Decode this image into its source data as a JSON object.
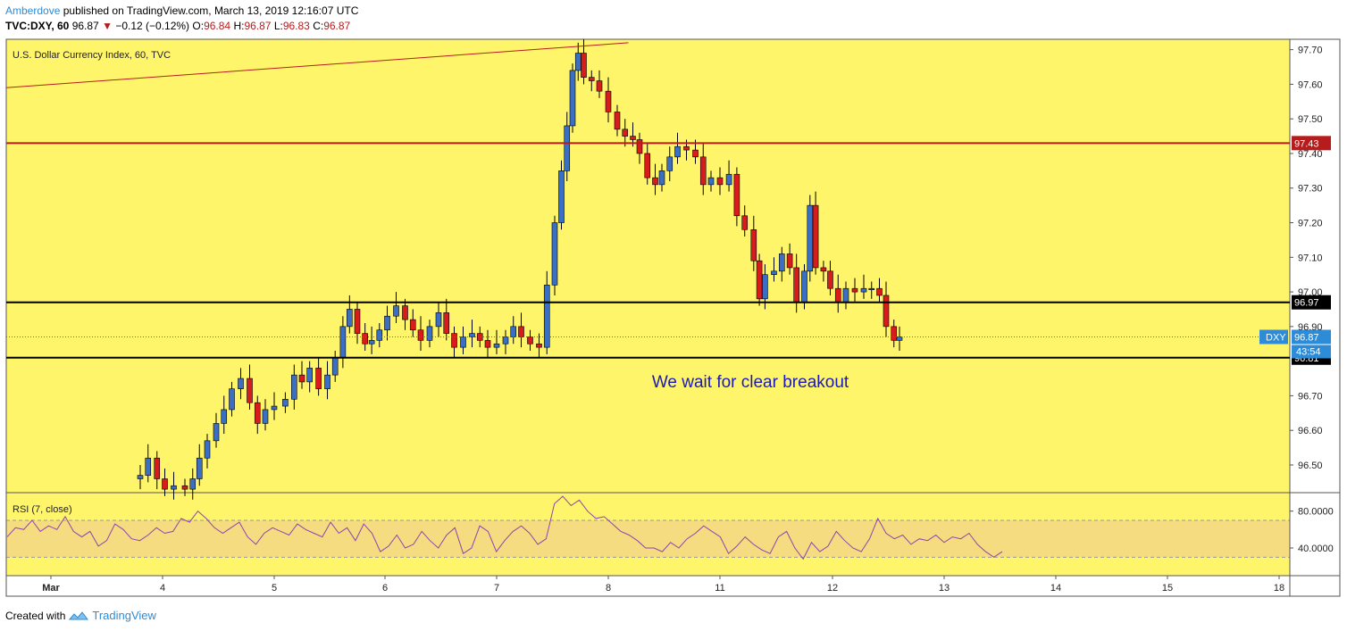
{
  "header": {
    "author": "Amberdove",
    "published": "published on TradingView.com, March 13, 2019 12:16:07 UTC",
    "symbol": "TVC:DXY, 60",
    "last": "96.87",
    "change_arrow": "▼",
    "change": "−0.12 (−0.12%)",
    "o_label": "O:",
    "o_value": "96.84",
    "h_label": "H:",
    "h_value": "96.87",
    "l_label": "L:",
    "l_value": "96.83",
    "c_label": "C:",
    "c_value": "96.87"
  },
  "footer": {
    "created_with": "Created with",
    "brand": "TradingView"
  },
  "colors": {
    "background": "#fff56b",
    "up_candle": "#3b6fc4",
    "down_candle": "#d81b1b",
    "resistance_line": "#b71c1c",
    "support_line": "#000000",
    "rsi_line": "#8e44ad",
    "rsi_band": "#f5dc80",
    "annotation": "#1a1ab8"
  },
  "chart_data": [
    {
      "type": "candlestick",
      "title": "U.S. Dollar Currency Index, 60, TVC",
      "ylim": [
        96.42,
        97.73
      ],
      "yticks": [
        "97.70",
        "97.60",
        "97.50",
        "97.40",
        "97.30",
        "97.20",
        "97.10",
        "97.00",
        "96.90",
        "96.70",
        "96.60",
        "96.50"
      ],
      "xticks": [
        "Mar",
        "4",
        "5",
        "6",
        "7",
        "8",
        "11",
        "12",
        "13",
        "14",
        "15",
        "18"
      ],
      "annotation": "We wait for clear breakout",
      "levels": [
        {
          "label": "97.43",
          "value": 97.43,
          "style": "resistance"
        },
        {
          "label": "96.97",
          "value": 96.97,
          "style": "support"
        },
        {
          "label": "96.81",
          "value": 96.81,
          "style": "support"
        }
      ],
      "price_tag": {
        "symbol": "DXY",
        "value": 96.87,
        "label": "96.87",
        "countdown": "43:54"
      },
      "trendline": {
        "from": {
          "x": 0.0,
          "y": 97.59
        },
        "to": {
          "x": 5.18,
          "y": 97.72
        }
      },
      "x_unit_note_days": [
        "Mar 1",
        "Mar 4",
        "Mar 5",
        "Mar 6",
        "Mar 7",
        "Mar 8",
        "Mar 11",
        "Mar 12",
        "Mar 13",
        "Mar 14",
        "Mar 15",
        "Mar 18"
      ],
      "close_path": [
        [
          0.75,
          96.46
        ],
        [
          0.8,
          96.47
        ],
        [
          0.87,
          96.52
        ],
        [
          0.95,
          96.46
        ],
        [
          1.02,
          96.43
        ],
        [
          1.1,
          96.44
        ],
        [
          1.2,
          96.43
        ],
        [
          1.27,
          96.46
        ],
        [
          1.33,
          96.52
        ],
        [
          1.4,
          96.57
        ],
        [
          1.48,
          96.62
        ],
        [
          1.55,
          96.66
        ],
        [
          1.62,
          96.72
        ],
        [
          1.7,
          96.75
        ],
        [
          1.78,
          96.68
        ],
        [
          1.85,
          96.62
        ],
        [
          1.92,
          96.66
        ],
        [
          2.0,
          96.67
        ],
        [
          2.1,
          96.69
        ],
        [
          2.18,
          96.76
        ],
        [
          2.25,
          96.74
        ],
        [
          2.32,
          96.78
        ],
        [
          2.4,
          96.72
        ],
        [
          2.48,
          96.76
        ],
        [
          2.55,
          96.81
        ],
        [
          2.62,
          96.9
        ],
        [
          2.68,
          96.95
        ],
        [
          2.75,
          96.88
        ],
        [
          2.82,
          96.85
        ],
        [
          2.88,
          96.86
        ],
        [
          2.95,
          96.89
        ],
        [
          3.02,
          96.93
        ],
        [
          3.1,
          96.96
        ],
        [
          3.18,
          96.92
        ],
        [
          3.25,
          96.89
        ],
        [
          3.32,
          96.86
        ],
        [
          3.4,
          96.9
        ],
        [
          3.48,
          96.94
        ],
        [
          3.55,
          96.88
        ],
        [
          3.62,
          96.84
        ],
        [
          3.7,
          96.87
        ],
        [
          3.78,
          96.88
        ],
        [
          3.85,
          96.86
        ],
        [
          3.92,
          96.84
        ],
        [
          4.0,
          96.85
        ],
        [
          4.08,
          96.87
        ],
        [
          4.15,
          96.9
        ],
        [
          4.22,
          96.87
        ],
        [
          4.3,
          96.85
        ],
        [
          4.38,
          96.84
        ],
        [
          4.45,
          97.02
        ],
        [
          4.52,
          97.2
        ],
        [
          4.58,
          97.35
        ],
        [
          4.63,
          97.48
        ],
        [
          4.68,
          97.64
        ],
        [
          4.73,
          97.69
        ],
        [
          4.78,
          97.62
        ],
        [
          4.85,
          97.61
        ],
        [
          4.92,
          97.58
        ],
        [
          5.0,
          97.52
        ],
        [
          5.08,
          97.47
        ],
        [
          5.15,
          97.45
        ],
        [
          5.22,
          97.44
        ],
        [
          5.28,
          97.4
        ],
        [
          5.35,
          97.33
        ],
        [
          5.42,
          97.31
        ],
        [
          5.48,
          97.35
        ],
        [
          5.55,
          97.39
        ],
        [
          5.62,
          97.42
        ],
        [
          5.7,
          97.41
        ],
        [
          5.78,
          97.39
        ],
        [
          5.85,
          97.31
        ],
        [
          5.92,
          97.33
        ],
        [
          6.0,
          97.31
        ],
        [
          6.08,
          97.34
        ],
        [
          6.15,
          97.22
        ],
        [
          6.22,
          97.18
        ],
        [
          6.3,
          97.09
        ],
        [
          6.35,
          96.98
        ],
        [
          6.4,
          97.05
        ],
        [
          6.48,
          97.06
        ],
        [
          6.55,
          97.11
        ],
        [
          6.62,
          97.07
        ],
        [
          6.68,
          96.97
        ],
        [
          6.75,
          97.06
        ],
        [
          6.8,
          97.25
        ],
        [
          6.85,
          97.07
        ],
        [
          6.92,
          97.06
        ],
        [
          6.98,
          97.01
        ],
        [
          7.05,
          96.97
        ],
        [
          7.12,
          97.01
        ],
        [
          7.2,
          97.0
        ],
        [
          7.28,
          97.01
        ],
        [
          7.35,
          97.01
        ],
        [
          7.42,
          96.99
        ],
        [
          7.48,
          96.9
        ],
        [
          7.55,
          96.86
        ],
        [
          7.6,
          96.87
        ]
      ]
    },
    {
      "type": "line",
      "title": "RSI (7, close)",
      "ylim": [
        10,
        100
      ],
      "yticks": [
        "80.0000",
        "40.0000"
      ],
      "band": [
        30,
        70
      ],
      "values": [
        52,
        62,
        60,
        70,
        58,
        64,
        60,
        74,
        58,
        52,
        58,
        42,
        48,
        66,
        60,
        50,
        48,
        54,
        62,
        56,
        58,
        72,
        68,
        80,
        72,
        62,
        56,
        62,
        68,
        52,
        44,
        56,
        62,
        58,
        54,
        66,
        60,
        56,
        52,
        68,
        56,
        62,
        48,
        66,
        56,
        36,
        42,
        54,
        40,
        44,
        58,
        48,
        40,
        54,
        62,
        34,
        40,
        64,
        58,
        36,
        48,
        58,
        64,
        56,
        44,
        50,
        88,
        96,
        86,
        92,
        80,
        72,
        74,
        66,
        58,
        54,
        48,
        40,
        40,
        36,
        46,
        40,
        50,
        56,
        64,
        58,
        52,
        34,
        42,
        52,
        44,
        38,
        34,
        52,
        58,
        40,
        28,
        46,
        36,
        42,
        58,
        48,
        40,
        36,
        50,
        72,
        56,
        50,
        54,
        44,
        50,
        48,
        54,
        46,
        52,
        50,
        56,
        44,
        36,
        30,
        36
      ]
    }
  ]
}
